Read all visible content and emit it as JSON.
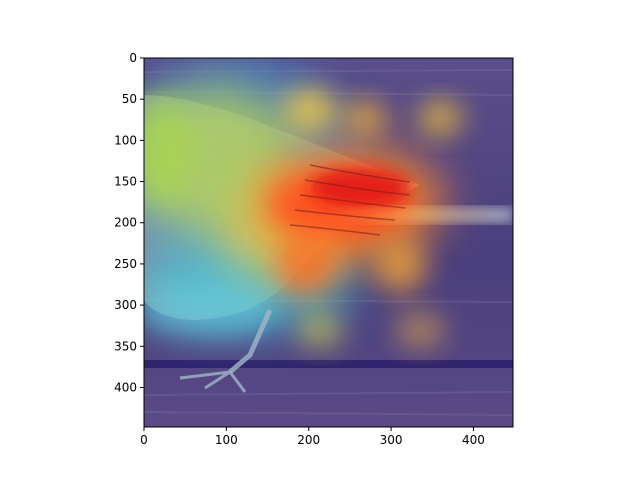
{
  "colors": {
    "background": "#ffffff",
    "axis": "#000000",
    "colormap": "jet"
  },
  "image": {
    "subject": "bird with a wing outstretched, overlaid with a heatmap",
    "extent": {
      "x": [
        0,
        448
      ],
      "y": [
        0,
        448
      ]
    }
  },
  "axes": {
    "x_ticks": [
      {
        "value": 0,
        "label": "0"
      },
      {
        "value": 100,
        "label": "100"
      },
      {
        "value": 200,
        "label": "200"
      },
      {
        "value": 300,
        "label": "300"
      },
      {
        "value": 400,
        "label": "400"
      }
    ],
    "y_ticks": [
      {
        "value": 0,
        "label": "0"
      },
      {
        "value": 50,
        "label": "50"
      },
      {
        "value": 100,
        "label": "100"
      },
      {
        "value": 150,
        "label": "150"
      },
      {
        "value": 200,
        "label": "200"
      },
      {
        "value": 250,
        "label": "250"
      },
      {
        "value": 300,
        "label": "300"
      },
      {
        "value": 350,
        "label": "350"
      },
      {
        "value": 400,
        "label": "400"
      }
    ]
  }
}
